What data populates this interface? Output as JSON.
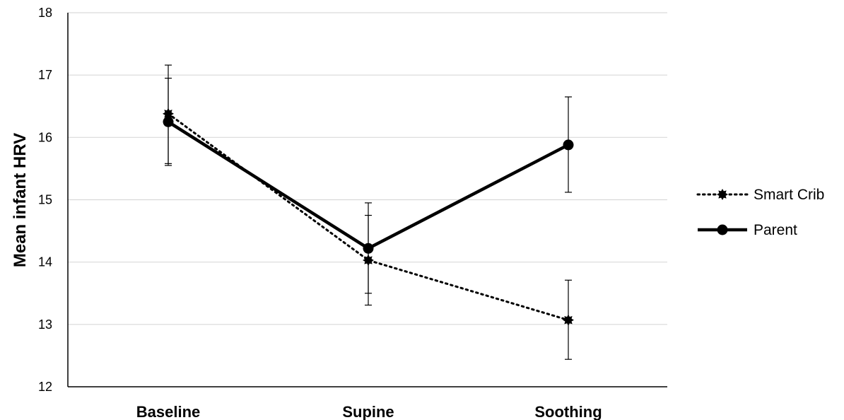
{
  "chart_data": {
    "type": "line",
    "categories": [
      "Baseline",
      "Supine",
      "Soothing"
    ],
    "ylabel": "Mean infant HRV",
    "xlabel": "",
    "ylim": [
      12,
      18
    ],
    "yticks": [
      12,
      13,
      14,
      15,
      16,
      17,
      18
    ],
    "grid": true,
    "legend_position": "right",
    "series": [
      {
        "name": "Smart Crib",
        "values": [
          16.38,
          14.03,
          13.07
        ],
        "error_low": [
          15.58,
          13.31,
          12.44
        ],
        "error_high": [
          17.16,
          14.75,
          13.71
        ],
        "style": "dotted",
        "color": "#000000"
      },
      {
        "name": "Parent",
        "values": [
          16.25,
          14.22,
          15.88
        ],
        "error_low": [
          15.55,
          13.5,
          15.12
        ],
        "error_high": [
          16.95,
          14.95,
          16.65
        ],
        "style": "solid",
        "color": "#000000"
      }
    ]
  }
}
